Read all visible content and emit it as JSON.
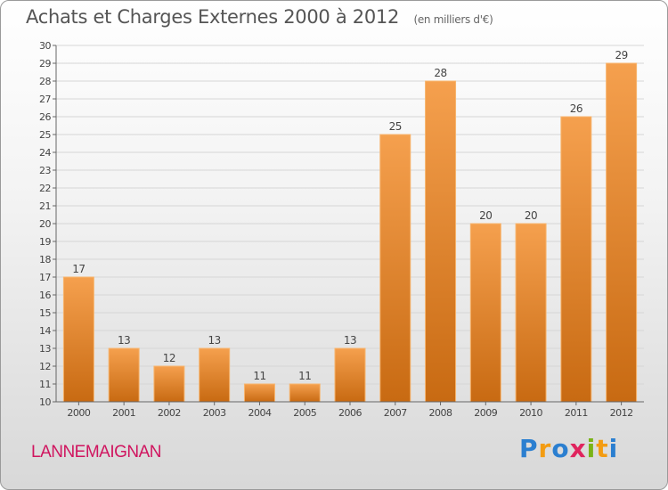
{
  "header": {
    "title": "Achats et Charges Externes 2000 à 2012",
    "subtitle": "(en milliers d'€)"
  },
  "place_name": "LANNEMAIGNAN",
  "brand": {
    "letters": [
      "P",
      "r",
      "o",
      "x",
      "i",
      "t",
      "i"
    ],
    "colors": [
      "#2b7fd0",
      "#f39c12",
      "#2b7fd0",
      "#e0245e",
      "#7ab317",
      "#f39c12",
      "#2b7fd0"
    ]
  },
  "colors": {
    "bar_top": "#f5a04e",
    "bar_bottom": "#c86a12",
    "bar_edge": "#f7b56e"
  },
  "chart_data": {
    "type": "bar",
    "title": "Achats et Charges Externes 2000 à 2012",
    "categories": [
      "2000",
      "2001",
      "2002",
      "2003",
      "2004",
      "2005",
      "2006",
      "2007",
      "2008",
      "2009",
      "2010",
      "2011",
      "2012"
    ],
    "values": [
      17,
      13,
      12,
      13,
      11,
      11,
      13,
      25,
      28,
      20,
      20,
      26,
      29
    ],
    "ylim": [
      10,
      30
    ],
    "yticks": [
      10,
      11,
      12,
      13,
      14,
      15,
      16,
      17,
      18,
      19,
      20,
      21,
      22,
      23,
      24,
      25,
      26,
      27,
      28,
      29,
      30
    ],
    "grid": true,
    "data_labels": true
  }
}
